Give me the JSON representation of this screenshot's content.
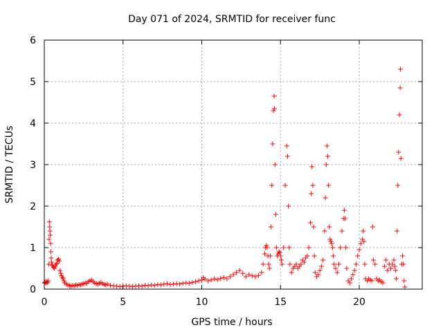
{
  "chart_data": {
    "type": "scatter",
    "title": "Day 071 of 2024, SRMTID for receiver func",
    "xlabel": "GPS time / hours",
    "ylabel": "SRMTID / TECUs",
    "xlim": [
      0,
      24
    ],
    "ylim": [
      0,
      6
    ],
    "xticks": [
      0,
      5,
      10,
      15,
      20
    ],
    "yticks": [
      0,
      1,
      2,
      3,
      4,
      5,
      6
    ],
    "grid": true,
    "marker": "+",
    "series": [
      {
        "name": "SRMTID",
        "color": "#ff0000",
        "points": [
          [
            0.0,
            0.15
          ],
          [
            0.05,
            0.17
          ],
          [
            0.1,
            0.14
          ],
          [
            0.15,
            0.18
          ],
          [
            0.2,
            0.16
          ],
          [
            0.25,
            0.2
          ],
          [
            0.28,
            0.6
          ],
          [
            0.3,
            1.2
          ],
          [
            0.32,
            1.62
          ],
          [
            0.34,
            1.5
          ],
          [
            0.36,
            1.4
          ],
          [
            0.38,
            1.3
          ],
          [
            0.4,
            1.1
          ],
          [
            0.42,
            0.9
          ],
          [
            0.44,
            0.75
          ],
          [
            0.46,
            0.65
          ],
          [
            0.5,
            0.58
          ],
          [
            0.55,
            0.55
          ],
          [
            0.6,
            0.52
          ],
          [
            0.65,
            0.5
          ],
          [
            0.7,
            0.55
          ],
          [
            0.75,
            0.6
          ],
          [
            0.8,
            0.62
          ],
          [
            0.85,
            0.7
          ],
          [
            0.9,
            0.72
          ],
          [
            0.95,
            0.68
          ],
          [
            1.0,
            0.45
          ],
          [
            1.05,
            0.38
          ],
          [
            1.1,
            0.32
          ],
          [
            1.15,
            0.28
          ],
          [
            1.2,
            0.25
          ],
          [
            1.25,
            0.2
          ],
          [
            1.3,
            0.15
          ],
          [
            1.4,
            0.12
          ],
          [
            1.5,
            0.1
          ],
          [
            1.6,
            0.08
          ],
          [
            1.7,
            0.07
          ],
          [
            1.8,
            0.09
          ],
          [
            1.9,
            0.08
          ],
          [
            2.0,
            0.1
          ],
          [
            2.1,
            0.09
          ],
          [
            2.2,
            0.11
          ],
          [
            2.3,
            0.1
          ],
          [
            2.4,
            0.12
          ],
          [
            2.5,
            0.13
          ],
          [
            2.6,
            0.15
          ],
          [
            2.7,
            0.14
          ],
          [
            2.8,
            0.18
          ],
          [
            2.9,
            0.2
          ],
          [
            3.0,
            0.22
          ],
          [
            3.1,
            0.18
          ],
          [
            3.2,
            0.15
          ],
          [
            3.3,
            0.13
          ],
          [
            3.4,
            0.12
          ],
          [
            3.5,
            0.14
          ],
          [
            3.6,
            0.16
          ],
          [
            3.7,
            0.13
          ],
          [
            3.8,
            0.11
          ],
          [
            3.9,
            0.1
          ],
          [
            4.0,
            0.12
          ],
          [
            4.2,
            0.09
          ],
          [
            4.4,
            0.08
          ],
          [
            4.6,
            0.07
          ],
          [
            4.8,
            0.06
          ],
          [
            5.0,
            0.07
          ],
          [
            5.2,
            0.08
          ],
          [
            5.4,
            0.07
          ],
          [
            5.6,
            0.06
          ],
          [
            5.8,
            0.07
          ],
          [
            6.0,
            0.08
          ],
          [
            6.2,
            0.07
          ],
          [
            6.4,
            0.09
          ],
          [
            6.6,
            0.08
          ],
          [
            6.8,
            0.1
          ],
          [
            7.0,
            0.09
          ],
          [
            7.2,
            0.11
          ],
          [
            7.4,
            0.1
          ],
          [
            7.6,
            0.12
          ],
          [
            7.8,
            0.13
          ],
          [
            8.0,
            0.11
          ],
          [
            8.2,
            0.12
          ],
          [
            8.4,
            0.13
          ],
          [
            8.6,
            0.12
          ],
          [
            8.8,
            0.14
          ],
          [
            9.0,
            0.15
          ],
          [
            9.2,
            0.14
          ],
          [
            9.4,
            0.16
          ],
          [
            9.6,
            0.18
          ],
          [
            9.8,
            0.2
          ],
          [
            10.0,
            0.22
          ],
          [
            10.1,
            0.28
          ],
          [
            10.2,
            0.24
          ],
          [
            10.4,
            0.2
          ],
          [
            10.6,
            0.22
          ],
          [
            10.8,
            0.25
          ],
          [
            11.0,
            0.23
          ],
          [
            11.2,
            0.26
          ],
          [
            11.4,
            0.28
          ],
          [
            11.6,
            0.25
          ],
          [
            11.8,
            0.3
          ],
          [
            12.0,
            0.35
          ],
          [
            12.2,
            0.4
          ],
          [
            12.4,
            0.45
          ],
          [
            12.6,
            0.38
          ],
          [
            12.8,
            0.3
          ],
          [
            13.0,
            0.35
          ],
          [
            13.2,
            0.32
          ],
          [
            13.4,
            0.3
          ],
          [
            13.6,
            0.33
          ],
          [
            13.8,
            0.4
          ],
          [
            13.9,
            0.6
          ],
          [
            14.0,
            0.85
          ],
          [
            14.05,
            1.0
          ],
          [
            14.1,
            1.05
          ],
          [
            14.15,
            1.0
          ],
          [
            14.2,
            0.8
          ],
          [
            14.25,
            0.6
          ],
          [
            14.3,
            0.5
          ],
          [
            14.35,
            0.8
          ],
          [
            14.4,
            1.5
          ],
          [
            14.45,
            2.5
          ],
          [
            14.5,
            3.5
          ],
          [
            14.55,
            4.3
          ],
          [
            14.6,
            4.65
          ],
          [
            14.62,
            4.35
          ],
          [
            14.65,
            3.0
          ],
          [
            14.7,
            1.8
          ],
          [
            14.75,
            1.0
          ],
          [
            14.8,
            0.8
          ],
          [
            14.85,
            0.85
          ],
          [
            14.9,
            0.9
          ],
          [
            14.95,
            0.88
          ],
          [
            15.0,
            0.8
          ],
          [
            15.05,
            0.7
          ],
          [
            15.1,
            0.6
          ],
          [
            15.2,
            1.0
          ],
          [
            15.3,
            2.5
          ],
          [
            15.4,
            3.45
          ],
          [
            15.45,
            3.2
          ],
          [
            15.5,
            2.0
          ],
          [
            15.55,
            1.0
          ],
          [
            15.6,
            0.6
          ],
          [
            15.7,
            0.4
          ],
          [
            15.8,
            0.5
          ],
          [
            15.9,
            0.55
          ],
          [
            16.0,
            0.6
          ],
          [
            16.1,
            0.5
          ],
          [
            16.2,
            0.55
          ],
          [
            16.3,
            0.6
          ],
          [
            16.4,
            0.7
          ],
          [
            16.5,
            0.65
          ],
          [
            16.6,
            0.75
          ],
          [
            16.7,
            0.8
          ],
          [
            16.8,
            1.0
          ],
          [
            16.9,
            1.6
          ],
          [
            16.95,
            2.3
          ],
          [
            17.0,
            2.95
          ],
          [
            17.05,
            2.5
          ],
          [
            17.1,
            1.5
          ],
          [
            17.15,
            0.8
          ],
          [
            17.2,
            0.4
          ],
          [
            17.3,
            0.3
          ],
          [
            17.4,
            0.35
          ],
          [
            17.5,
            0.45
          ],
          [
            17.6,
            0.55
          ],
          [
            17.7,
            0.7
          ],
          [
            17.8,
            1.4
          ],
          [
            17.85,
            2.2
          ],
          [
            17.9,
            3.0
          ],
          [
            17.95,
            3.45
          ],
          [
            18.0,
            3.2
          ],
          [
            18.05,
            2.5
          ],
          [
            18.1,
            1.5
          ],
          [
            18.15,
            1.2
          ],
          [
            18.2,
            1.15
          ],
          [
            18.25,
            1.1
          ],
          [
            18.3,
            1.0
          ],
          [
            18.35,
            0.8
          ],
          [
            18.4,
            0.6
          ],
          [
            18.5,
            0.5
          ],
          [
            18.6,
            0.4
          ],
          [
            18.7,
            0.6
          ],
          [
            18.8,
            1.0
          ],
          [
            18.9,
            1.4
          ],
          [
            19.0,
            1.7
          ],
          [
            19.05,
            1.9
          ],
          [
            19.1,
            1.7
          ],
          [
            19.15,
            1.0
          ],
          [
            19.2,
            0.5
          ],
          [
            19.3,
            0.2
          ],
          [
            19.4,
            0.15
          ],
          [
            19.5,
            0.25
          ],
          [
            19.6,
            0.35
          ],
          [
            19.7,
            0.45
          ],
          [
            19.8,
            0.6
          ],
          [
            19.9,
            0.8
          ],
          [
            20.0,
            0.95
          ],
          [
            20.1,
            1.1
          ],
          [
            20.2,
            1.2
          ],
          [
            20.25,
            1.4
          ],
          [
            20.3,
            1.15
          ],
          [
            20.35,
            0.6
          ],
          [
            20.4,
            0.25
          ],
          [
            20.5,
            0.2
          ],
          [
            20.6,
            0.25
          ],
          [
            20.7,
            0.22
          ],
          [
            20.8,
            0.2
          ],
          [
            20.85,
            1.5
          ],
          [
            20.9,
            0.7
          ],
          [
            21.0,
            0.6
          ],
          [
            21.1,
            0.25
          ],
          [
            21.2,
            0.2
          ],
          [
            21.3,
            0.22
          ],
          [
            21.4,
            0.18
          ],
          [
            21.5,
            0.15
          ],
          [
            21.6,
            0.55
          ],
          [
            21.7,
            0.7
          ],
          [
            21.8,
            0.45
          ],
          [
            21.9,
            0.6
          ],
          [
            22.0,
            0.5
          ],
          [
            22.1,
            0.6
          ],
          [
            22.2,
            0.7
          ],
          [
            22.25,
            0.55
          ],
          [
            22.3,
            0.45
          ],
          [
            22.35,
            0.25
          ],
          [
            22.4,
            1.4
          ],
          [
            22.45,
            2.5
          ],
          [
            22.5,
            3.3
          ],
          [
            22.55,
            4.2
          ],
          [
            22.6,
            4.85
          ],
          [
            22.62,
            5.3
          ],
          [
            22.65,
            3.15
          ],
          [
            22.7,
            0.6
          ],
          [
            22.75,
            0.8
          ],
          [
            22.8,
            0.6
          ],
          [
            22.85,
            0.2
          ],
          [
            22.9,
            0.05
          ]
        ]
      }
    ]
  }
}
